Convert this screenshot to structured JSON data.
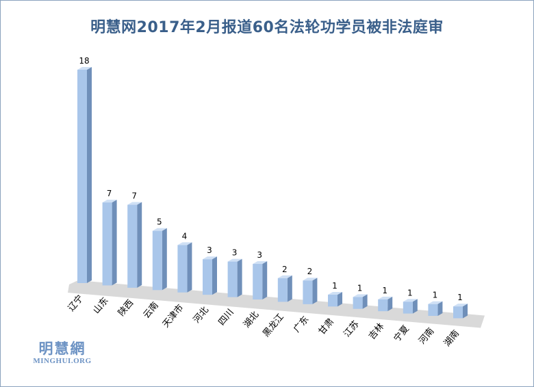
{
  "title": "明慧网2017年2月报道60名法轮功学员被非法庭审",
  "logo": {
    "cn": "明慧網",
    "en": "MINGHUI.ORG"
  },
  "colors": {
    "bar_front": "#a9c6ea",
    "bar_side": "#6f8fb9",
    "bar_top": "#cfe0f5",
    "floor": "#d9d9d9",
    "title": "#3a5f8a"
  },
  "chart_data": {
    "type": "bar",
    "title": "明慧网2017年2月报道60名法轮功学员被非法庭审",
    "categories": [
      "辽宁",
      "山东",
      "陕西",
      "云南",
      "天津市",
      "河北",
      "四川",
      "湖北",
      "黑龙江",
      "广东",
      "甘肃",
      "江苏",
      "吉林",
      "宁夏",
      "河南",
      "湖南"
    ],
    "values": [
      18,
      7,
      7,
      5,
      4,
      3,
      3,
      3,
      2,
      2,
      1,
      1,
      1,
      1,
      1,
      1
    ],
    "xlabel": "",
    "ylabel": "",
    "ylim": [
      0,
      18
    ],
    "grid": false,
    "legend": "none"
  }
}
